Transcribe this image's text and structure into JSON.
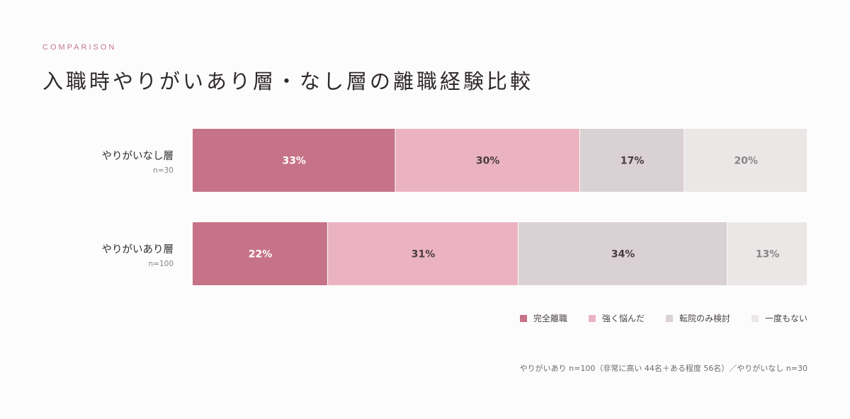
{
  "header": {
    "eyebrow": "COMPARISON",
    "title": "入職時やりがいあり層・なし層の離職経験比較"
  },
  "colors": {
    "segments": [
      "#c67388",
      "#ebb3c1",
      "#d9d1d3",
      "#ebe7e7"
    ],
    "label_on_dark": "#ffffff",
    "label_on_light": "#4a3b3f",
    "label_on_lightest": "#8a8486"
  },
  "chart_data": {
    "type": "bar",
    "stacked": true,
    "orientation": "horizontal",
    "unit": "%",
    "xlim": [
      0,
      100
    ],
    "categories": [
      "やりがいなし層",
      "やりがいあり層"
    ],
    "sample_sizes": [
      "n=30",
      "n=100"
    ],
    "series": [
      {
        "name": "完全離職",
        "values": [
          33,
          22
        ]
      },
      {
        "name": "強く悩んだ",
        "values": [
          30,
          31
        ]
      },
      {
        "name": "転院のみ検討",
        "values": [
          17,
          34
        ]
      },
      {
        "name": "一度もない",
        "values": [
          20,
          13
        ]
      }
    ],
    "legend_position": "bottom-right",
    "grid": false
  },
  "footnote": "やりがいあり n=100（非常に高い 44名＋ある程度 56名）／やりがいなし n=30"
}
